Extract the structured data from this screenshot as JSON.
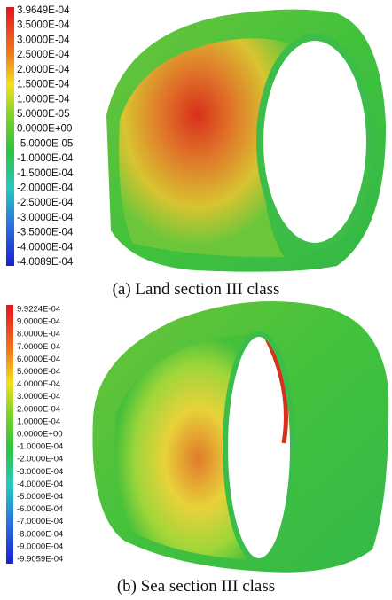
{
  "panel_a": {
    "legend": [
      "3.9649E-04",
      "3.5000E-04",
      "3.0000E-04",
      "2.5000E-04",
      "2.0000E-04",
      "1.5000E-04",
      "1.0000E-04",
      "5.0000E-05",
      "0.0000E+00",
      "-5.0000E-05",
      "-1.0000E-04",
      "-1.5000E-04",
      "-2.0000E-04",
      "-2.5000E-04",
      "-3.0000E-04",
      "-3.5000E-04",
      "-4.0000E-04",
      "-4.0089E-04"
    ],
    "caption": "(a) Land section III class"
  },
  "panel_b": {
    "legend": [
      "9.9224E-04",
      "9.0000E-04",
      "8.0000E-04",
      "7.0000E-04",
      "6.0000E-04",
      "5.0000E-04",
      "4.0000E-04",
      "3.0000E-04",
      "2.0000E-04",
      "1.0000E-04",
      "0.0000E+00",
      "-1.0000E-04",
      "-2.0000E-04",
      "-3.0000E-04",
      "-4.0000E-04",
      "-5.0000E-04",
      "-6.0000E-04",
      "-7.0000E-04",
      "-8.0000E-04",
      "-9.0000E-04",
      "-9.9059E-04"
    ],
    "caption": "(b) Sea section III class"
  }
}
